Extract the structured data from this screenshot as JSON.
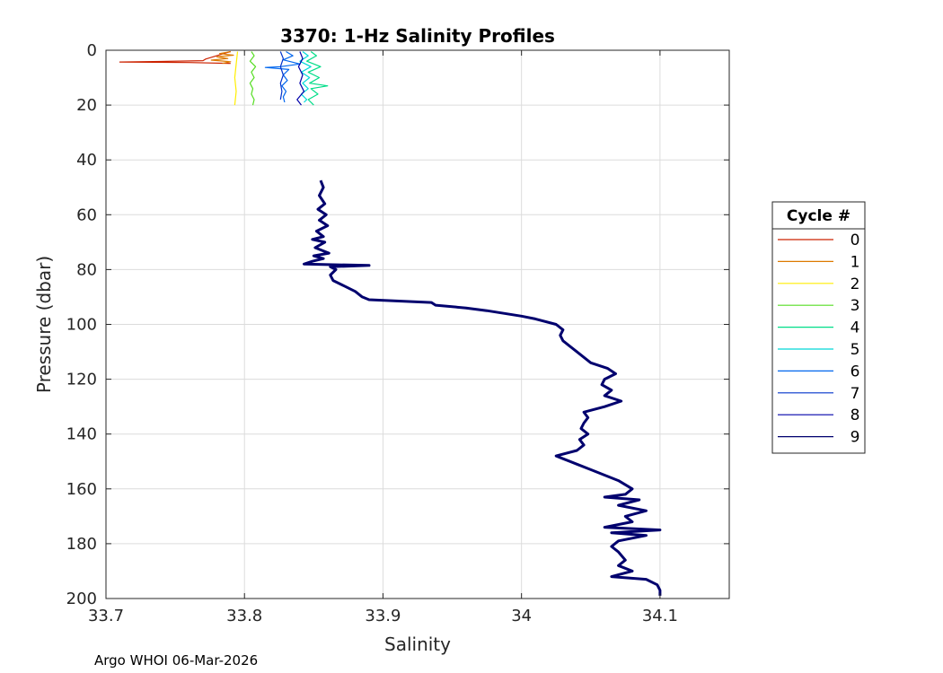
{
  "chart_data": {
    "type": "line",
    "title": "3370: 1-Hz Salinity Profiles",
    "xlabel": "Salinity",
    "ylabel": "Pressure (dbar)",
    "xlim": [
      33.7,
      34.15
    ],
    "ylim": [
      0,
      200
    ],
    "y_reversed": true,
    "grid": true,
    "xticks": [
      33.7,
      33.8,
      33.9,
      34,
      34.1
    ],
    "xtick_labels": [
      "33.7",
      "33.8",
      "33.9",
      "34",
      "34.1"
    ],
    "yticks": [
      0,
      20,
      40,
      60,
      80,
      100,
      120,
      140,
      160,
      180,
      200
    ],
    "ytick_labels": [
      "0",
      "20",
      "40",
      "60",
      "80",
      "100",
      "120",
      "140",
      "160",
      "180",
      "200"
    ],
    "legend": {
      "title": "Cycle #",
      "placement": "outside-right"
    },
    "series": [
      {
        "name": "0",
        "color": "#cc2200",
        "points": [
          [
            33.79,
            0.5
          ],
          [
            33.785,
            1.2
          ],
          [
            33.78,
            2
          ],
          [
            33.776,
            2.6
          ],
          [
            33.772,
            3.2
          ],
          [
            33.77,
            3.8
          ],
          [
            33.74,
            4.1
          ],
          [
            33.71,
            4.3
          ],
          [
            33.76,
            4.5
          ],
          [
            33.79,
            4.8
          ]
        ]
      },
      {
        "name": "1",
        "color": "#dd7a00",
        "points": [
          [
            33.79,
            0.5
          ],
          [
            33.782,
            1.2
          ],
          [
            33.792,
            1.8
          ],
          [
            33.78,
            2.4
          ],
          [
            33.788,
            3
          ],
          [
            33.776,
            3.6
          ],
          [
            33.79,
            4.2
          ],
          [
            33.784,
            4.8
          ]
        ]
      },
      {
        "name": "2",
        "color": "#ffee00",
        "points": [
          [
            33.795,
            0.5
          ],
          [
            33.794,
            5
          ],
          [
            33.793,
            10
          ],
          [
            33.794,
            15
          ],
          [
            33.793,
            20
          ]
        ]
      },
      {
        "name": "3",
        "color": "#55dd22",
        "points": [
          [
            33.805,
            0.5
          ],
          [
            33.807,
            2
          ],
          [
            33.804,
            4
          ],
          [
            33.808,
            6
          ],
          [
            33.805,
            8
          ],
          [
            33.807,
            10
          ],
          [
            33.804,
            12
          ],
          [
            33.806,
            14
          ],
          [
            33.805,
            16
          ],
          [
            33.807,
            18
          ],
          [
            33.806,
            20
          ]
        ]
      },
      {
        "name": "4",
        "color": "#00dd88",
        "points": [
          [
            33.848,
            0.5
          ],
          [
            33.852,
            2
          ],
          [
            33.845,
            4
          ],
          [
            33.855,
            6
          ],
          [
            33.846,
            8
          ],
          [
            33.854,
            10
          ],
          [
            33.847,
            12
          ],
          [
            33.86,
            13
          ],
          [
            33.848,
            14
          ],
          [
            33.853,
            16
          ],
          [
            33.846,
            18
          ],
          [
            33.85,
            20
          ]
        ]
      },
      {
        "name": "5",
        "color": "#00d8d8",
        "points": [
          [
            33.842,
            0.5
          ],
          [
            33.846,
            2
          ],
          [
            33.84,
            4
          ],
          [
            33.848,
            6
          ],
          [
            33.841,
            8
          ],
          [
            33.847,
            10
          ],
          [
            33.842,
            12
          ],
          [
            33.846,
            14
          ],
          [
            33.841,
            16
          ],
          [
            33.845,
            18
          ],
          [
            33.843,
            19
          ]
        ]
      },
      {
        "name": "6",
        "color": "#0066ee",
        "points": [
          [
            33.83,
            0.5
          ],
          [
            33.835,
            2
          ],
          [
            33.828,
            3.5
          ],
          [
            33.84,
            5
          ],
          [
            33.826,
            6
          ],
          [
            33.815,
            6.3
          ],
          [
            33.832,
            7
          ],
          [
            33.828,
            9
          ],
          [
            33.831,
            11
          ],
          [
            33.827,
            13
          ],
          [
            33.83,
            15
          ],
          [
            33.828,
            17
          ],
          [
            33.829,
            19
          ]
        ]
      },
      {
        "name": "7",
        "color": "#0033cc",
        "points": [
          [
            33.826,
            0.5
          ],
          [
            33.828,
            3
          ],
          [
            33.826,
            6
          ],
          [
            33.828,
            9
          ],
          [
            33.826,
            12
          ],
          [
            33.827,
            15
          ],
          [
            33.826,
            18
          ]
        ]
      },
      {
        "name": "8",
        "color": "#0000aa",
        "points": [
          [
            33.84,
            0.5
          ],
          [
            33.842,
            3
          ],
          [
            33.839,
            6
          ],
          [
            33.842,
            9
          ],
          [
            33.84,
            12
          ],
          [
            33.843,
            15
          ],
          [
            33.838,
            18
          ],
          [
            33.841,
            20
          ]
        ]
      },
      {
        "name": "9",
        "color": "#00006e",
        "points": [
          [
            33.855,
            47.5
          ],
          [
            33.857,
            50
          ],
          [
            33.854,
            53
          ],
          [
            33.858,
            56
          ],
          [
            33.853,
            58
          ],
          [
            33.859,
            60
          ],
          [
            33.854,
            62
          ],
          [
            33.86,
            64
          ],
          [
            33.852,
            66
          ],
          [
            33.857,
            68
          ],
          [
            33.849,
            69
          ],
          [
            33.858,
            70
          ],
          [
            33.851,
            72
          ],
          [
            33.861,
            74
          ],
          [
            33.85,
            75
          ],
          [
            33.857,
            76
          ],
          [
            33.849,
            77
          ],
          [
            33.843,
            78
          ],
          [
            33.89,
            78.5
          ],
          [
            33.862,
            79
          ],
          [
            33.866,
            80
          ],
          [
            33.862,
            82
          ],
          [
            33.864,
            84
          ],
          [
            33.872,
            86
          ],
          [
            33.88,
            88
          ],
          [
            33.885,
            90
          ],
          [
            33.89,
            91
          ],
          [
            33.935,
            92
          ],
          [
            33.938,
            93
          ],
          [
            33.96,
            94
          ],
          [
            33.975,
            95
          ],
          [
            34.0,
            97
          ],
          [
            34.01,
            98
          ],
          [
            34.025,
            100
          ],
          [
            34.03,
            102
          ],
          [
            34.028,
            104
          ],
          [
            34.03,
            106
          ],
          [
            34.035,
            108
          ],
          [
            34.04,
            110
          ],
          [
            34.045,
            112
          ],
          [
            34.05,
            114
          ],
          [
            34.062,
            116
          ],
          [
            34.068,
            118
          ],
          [
            34.06,
            120
          ],
          [
            34.058,
            122
          ],
          [
            34.065,
            124
          ],
          [
            34.06,
            126
          ],
          [
            34.072,
            128
          ],
          [
            34.06,
            130
          ],
          [
            34.045,
            132
          ],
          [
            34.048,
            134
          ],
          [
            34.045,
            136
          ],
          [
            34.043,
            138
          ],
          [
            34.048,
            140
          ],
          [
            34.042,
            142
          ],
          [
            34.045,
            144
          ],
          [
            34.04,
            146
          ],
          [
            34.025,
            148
          ],
          [
            34.03,
            149
          ],
          [
            34.04,
            151
          ],
          [
            34.05,
            153
          ],
          [
            34.06,
            155
          ],
          [
            34.07,
            157
          ],
          [
            34.08,
            160
          ],
          [
            34.075,
            162
          ],
          [
            34.06,
            163
          ],
          [
            34.085,
            164
          ],
          [
            34.07,
            166
          ],
          [
            34.09,
            168
          ],
          [
            34.075,
            170
          ],
          [
            34.08,
            172
          ],
          [
            34.06,
            174
          ],
          [
            34.1,
            175
          ],
          [
            34.065,
            176
          ],
          [
            34.09,
            177
          ],
          [
            34.07,
            179
          ],
          [
            34.065,
            181
          ],
          [
            34.07,
            183
          ],
          [
            34.075,
            186
          ],
          [
            34.07,
            188
          ],
          [
            34.08,
            190
          ],
          [
            34.065,
            192
          ],
          [
            34.09,
            193
          ],
          [
            34.098,
            195
          ],
          [
            34.1,
            197
          ],
          [
            34.1,
            199
          ]
        ]
      }
    ]
  },
  "footer": {
    "text": "Argo WHOI 06-Mar-2026"
  }
}
